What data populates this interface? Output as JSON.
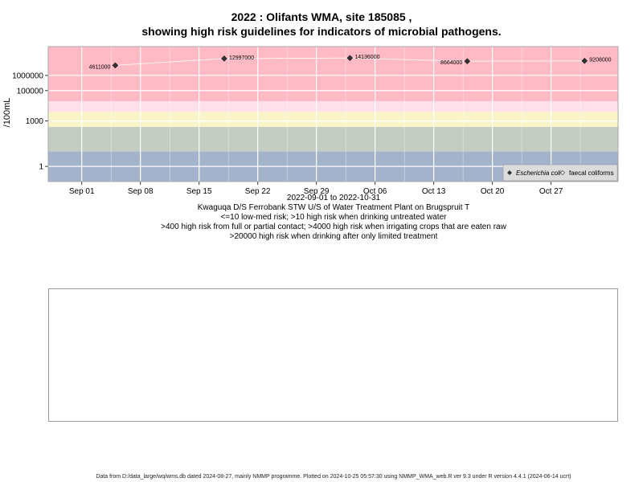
{
  "chart_data": {
    "type": "scatter",
    "title": "2022 : Olifants WMA, site 185085 ,",
    "subtitle": "showing high risk guidelines for indicators of microbial pathogens.",
    "ylabel": "/100mL",
    "y_scale": "log",
    "ylim": [
      0.1,
      80000000
    ],
    "x_range": [
      "2022-08-28",
      "2022-11-04"
    ],
    "x_ticks": [
      {
        "date": "2022-09-01",
        "label": "Sep 01"
      },
      {
        "date": "2022-09-08",
        "label": "Sep 08"
      },
      {
        "date": "2022-09-15",
        "label": "Sep 15"
      },
      {
        "date": "2022-09-22",
        "label": "Sep 22"
      },
      {
        "date": "2022-09-29",
        "label": "Sep 29"
      },
      {
        "date": "2022-10-06",
        "label": "Oct 06"
      },
      {
        "date": "2022-10-13",
        "label": "Oct 13"
      },
      {
        "date": "2022-10-20",
        "label": "Oct 20"
      },
      {
        "date": "2022-10-27",
        "label": "Oct 27"
      }
    ],
    "y_ticks": [
      {
        "value": 1,
        "label": "1"
      },
      {
        "value": 1000,
        "label": "1000"
      },
      {
        "value": 100000,
        "label": "100000"
      },
      {
        "value": 1000000,
        "label": "1000000"
      }
    ],
    "grid": true,
    "legend_position": "bottom-right",
    "legend": [
      {
        "label": "Escherichia coli",
        "marker": "filled-diamond"
      },
      {
        "label": "faecal coliforms",
        "marker": "open-diamond"
      }
    ],
    "risk_bands": [
      {
        "from": 0.1,
        "to": 10,
        "color": "#a3b3cc"
      },
      {
        "from": 10,
        "to": 400,
        "color": "#c3cdc1"
      },
      {
        "from": 400,
        "to": 4000,
        "color": "#faf4c9"
      },
      {
        "from": 4000,
        "to": 20000,
        "color": "#fde0ea"
      },
      {
        "from": 20000,
        "to": 80000000,
        "color": "#ffbac6"
      }
    ],
    "series": [
      {
        "name": "Escherichia coli",
        "points": [
          {
            "date": "2022-09-05",
            "value": 4611000,
            "label": "4611000"
          },
          {
            "date": "2022-09-18",
            "value": 12997000,
            "label": "12997000"
          },
          {
            "date": "2022-10-03",
            "value": 14136000,
            "label": "14136000"
          },
          {
            "date": "2022-10-17",
            "value": 8664000,
            "label": "8664000"
          },
          {
            "date": "2022-10-31",
            "value": 9208000,
            "label": "9208000"
          }
        ]
      }
    ]
  },
  "captions": {
    "date_range": "2022-09-01 to 2022-10-31",
    "site_name": "Kwaguqa D/S Ferrobank STW U/S of Water Treatment Plant on Brugspruit T",
    "guide_1": "<=10 low-med risk; >10 high risk when drinking untreated water",
    "guide_2": ">400 high risk from full or partial contact; >4000 high risk when irrigating crops that are eaten raw",
    "guide_3": ">20000 high risk when drinking after only limited treatment"
  },
  "footer": "Data from D:/data_large/wq/wms.db dated 2024-08-27, mainly NMMP programme. Plotted on 2024-10-25 05:57:30 using NMMP_WMA_web.R ver 9.3 under R version 4.4.1 (2024-06-14 ucrt)"
}
